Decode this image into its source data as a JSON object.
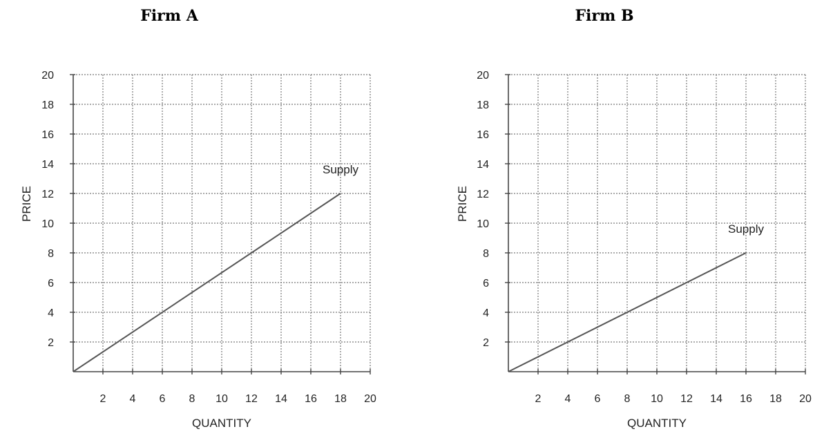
{
  "chart_data": [
    {
      "type": "line",
      "title": "Firm A",
      "xlabel": "QUANTITY",
      "ylabel": "PRICE",
      "xlim": [
        0,
        20
      ],
      "ylim": [
        0,
        20
      ],
      "xticks": [
        2,
        4,
        6,
        8,
        10,
        12,
        14,
        16,
        18,
        20
      ],
      "yticks": [
        2,
        4,
        6,
        8,
        10,
        12,
        14,
        16,
        18,
        20
      ],
      "grid": true,
      "series": [
        {
          "name": "Supply",
          "x": [
            0,
            18
          ],
          "y": [
            0,
            12
          ],
          "color": "#555555"
        }
      ]
    },
    {
      "type": "line",
      "title": "Firm B",
      "xlabel": "QUANTITY",
      "ylabel": "PRICE",
      "xlim": [
        0,
        20
      ],
      "ylim": [
        0,
        20
      ],
      "xticks": [
        2,
        4,
        6,
        8,
        10,
        12,
        14,
        16,
        18,
        20
      ],
      "yticks": [
        2,
        4,
        6,
        8,
        10,
        12,
        14,
        16,
        18,
        20
      ],
      "grid": true,
      "series": [
        {
          "name": "Supply",
          "x": [
            0,
            16
          ],
          "y": [
            0,
            8
          ],
          "color": "#555555"
        }
      ]
    }
  ]
}
